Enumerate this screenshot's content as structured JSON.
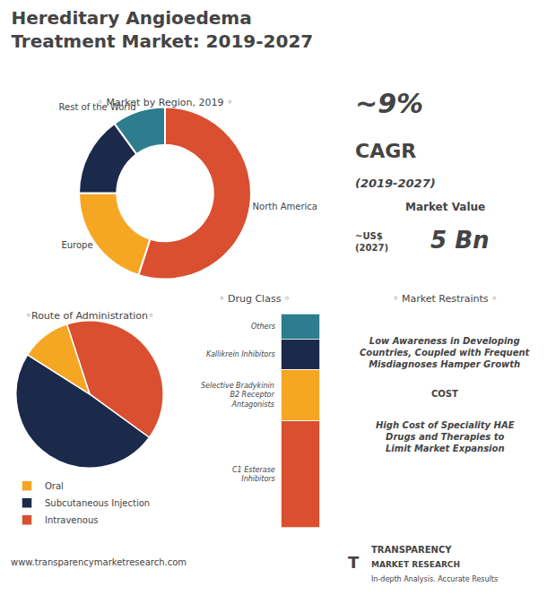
{
  "title": "Hereditary Angioedema\nTreatment Market: 2019-2027",
  "annotations": [
    "~9%",
    "CAGR",
    "(2019-2027)",
    "Market Value",
    "~US$\n(2027)",
    "5 Bn",
    "◦ Market Restraints ◦",
    "Low Awareness in Developing\nCountries, Coupled with Frequent\nMisdiagnoses Hamper Growth",
    "COST",
    "High Cost of Speciality HAE\nDrugs and Therapies to\nLimit Market Expansion",
    "www.transparencymarketresearch.com",
    "T",
    "TRANSPARENCY",
    "MARKET RESEARCH",
    "In-depth Analysis. Accurate Results"
  ],
  "chart_data": [
    {
      "type": "donut",
      "title": "◦ Market by Region, 2019 ◦",
      "categories": [
        "North America",
        "Europe",
        null,
        "Rest of the World"
      ],
      "values": [
        55,
        20,
        15,
        10
      ],
      "colors": [
        "#d94f30",
        "#f5a623",
        "#1b2a4a",
        "#2d7d8f"
      ]
    },
    {
      "type": "pie",
      "title": "◦Route of Administration◦",
      "categories": [
        "Intravenous",
        "Subcutaneous Injection",
        "Oral"
      ],
      "values": [
        40,
        49,
        11
      ],
      "colors": [
        "#d94f30",
        "#1b2a4a",
        "#f5a623"
      ],
      "legend": "bottom"
    },
    {
      "type": "bar",
      "stacked": true,
      "title": "◦ Drug Class ◦",
      "categories": [
        null
      ],
      "series": [
        {
          "name": "C1 Esterase\nInhibitors",
          "values": [
            50
          ],
          "color": "#d94f30"
        },
        {
          "name": "Selective Bradykinin\nB2 Receptor\nAntagonists",
          "values": [
            24
          ],
          "color": "#f5a623"
        },
        {
          "name": "Kallikrein Inhibitors",
          "values": [
            14
          ],
          "color": "#1b2a4a"
        },
        {
          "name": "Others",
          "values": [
            12
          ],
          "color": "#2d7d8f"
        }
      ],
      "ylim": [
        0,
        100
      ],
      "tick_labels": false,
      "grid": false
    }
  ]
}
